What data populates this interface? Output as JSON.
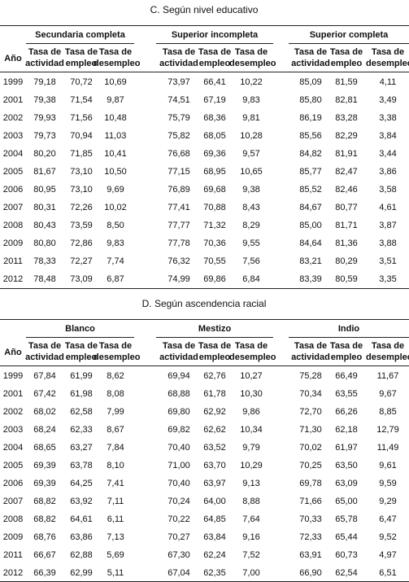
{
  "sections": [
    {
      "title": "C. Según nivel educativo",
      "year_header": "Año",
      "groups": [
        {
          "name": "Secundaria completa",
          "columns": [
            "Tasa de actividad",
            "Tasa de empleo",
            "Tasa de desempleo"
          ]
        },
        {
          "name": "Superior incompleta",
          "columns": [
            "Tasa de actividad",
            "Tasa de empleo",
            "Tasa de desempleo"
          ]
        },
        {
          "name": "Superior completa",
          "columns": [
            "Tasa de actividad",
            "Tasa de empleo",
            "Tasa de desempleo"
          ]
        }
      ],
      "rows": [
        {
          "year": "1999",
          "values": [
            "79,18",
            "70,72",
            "10,69",
            "73,97",
            "66,41",
            "10,22",
            "85,09",
            "81,59",
            "4,11"
          ]
        },
        {
          "year": "2001",
          "values": [
            "79,38",
            "71,54",
            "9,87",
            "74,51",
            "67,19",
            "9,83",
            "85,80",
            "82,81",
            "3,49"
          ]
        },
        {
          "year": "2002",
          "values": [
            "79,93",
            "71,56",
            "10,48",
            "75,79",
            "68,36",
            "9,81",
            "86,19",
            "83,28",
            "3,38"
          ]
        },
        {
          "year": "2003",
          "values": [
            "79,73",
            "70,94",
            "11,03",
            "75,82",
            "68,05",
            "10,28",
            "85,56",
            "82,29",
            "3,84"
          ]
        },
        {
          "year": "2004",
          "values": [
            "80,20",
            "71,85",
            "10,41",
            "76,68",
            "69,36",
            "9,57",
            "84,82",
            "81,91",
            "3,44"
          ]
        },
        {
          "year": "2005",
          "values": [
            "81,67",
            "73,10",
            "10,50",
            "77,15",
            "68,95",
            "10,65",
            "85,77",
            "82,47",
            "3,86"
          ]
        },
        {
          "year": "2006",
          "values": [
            "80,95",
            "73,10",
            "9,69",
            "76,89",
            "69,68",
            "9,38",
            "85,52",
            "82,46",
            "3,58"
          ]
        },
        {
          "year": "2007",
          "values": [
            "80,31",
            "72,26",
            "10,02",
            "77,41",
            "70,88",
            "8,43",
            "84,67",
            "80,77",
            "4,61"
          ]
        },
        {
          "year": "2008",
          "values": [
            "80,43",
            "73,59",
            "8,50",
            "77,77",
            "71,32",
            "8,29",
            "85,00",
            "81,71",
            "3,87"
          ]
        },
        {
          "year": "2009",
          "values": [
            "80,80",
            "72,86",
            "9,83",
            "77,78",
            "70,36",
            "9,55",
            "84,64",
            "81,36",
            "3,88"
          ]
        },
        {
          "year": "2011",
          "values": [
            "78,33",
            "72,27",
            "7,74",
            "76,32",
            "70,55",
            "7,56",
            "83,21",
            "80,29",
            "3,51"
          ]
        },
        {
          "year": "2012",
          "values": [
            "78,48",
            "73,09",
            "6,87",
            "74,99",
            "69,86",
            "6,84",
            "83,39",
            "80,59",
            "3,35"
          ]
        }
      ]
    },
    {
      "title": "D. Según ascendencia racial",
      "year_header": "Año",
      "groups": [
        {
          "name": "Blanco",
          "columns": [
            "Tasa de actividad",
            "Tasa de empleo",
            "Tasa de desempleo"
          ]
        },
        {
          "name": "Mestizo",
          "columns": [
            "Tasa de actividad",
            "Tasa de empleo",
            "Tasa de desempleo"
          ]
        },
        {
          "name": "Indio",
          "columns": [
            "Tasa de actividad",
            "Tasa de empleo",
            "Tasa de desempleo"
          ]
        }
      ],
      "rows": [
        {
          "year": "1999",
          "values": [
            "67,84",
            "61,99",
            "8,62",
            "69,94",
            "62,76",
            "10,27",
            "75,28",
            "66,49",
            "11,67"
          ]
        },
        {
          "year": "2001",
          "values": [
            "67,42",
            "61,98",
            "8,08",
            "68,88",
            "61,78",
            "10,30",
            "70,34",
            "63,55",
            "9,67"
          ]
        },
        {
          "year": "2002",
          "values": [
            "68,02",
            "62,58",
            "7,99",
            "69,80",
            "62,92",
            "9,86",
            "72,70",
            "66,26",
            "8,85"
          ]
        },
        {
          "year": "2003",
          "values": [
            "68,24",
            "62,33",
            "8,67",
            "69,82",
            "62,62",
            "10,34",
            "71,30",
            "62,18",
            "12,79"
          ]
        },
        {
          "year": "2004",
          "values": [
            "68,65",
            "63,27",
            "7,84",
            "70,40",
            "63,52",
            "9,79",
            "70,02",
            "61,97",
            "11,49"
          ]
        },
        {
          "year": "2005",
          "values": [
            "69,39",
            "63,78",
            "8,10",
            "71,00",
            "63,70",
            "10,29",
            "70,25",
            "63,50",
            "9,61"
          ]
        },
        {
          "year": "2006",
          "values": [
            "69,39",
            "64,25",
            "7,41",
            "70,40",
            "63,97",
            "9,13",
            "69,78",
            "63,09",
            "9,59"
          ]
        },
        {
          "year": "2007",
          "values": [
            "68,82",
            "63,92",
            "7,11",
            "70,24",
            "64,00",
            "8,88",
            "71,66",
            "65,00",
            "9,29"
          ]
        },
        {
          "year": "2008",
          "values": [
            "68,82",
            "64,61",
            "6,11",
            "70,22",
            "64,85",
            "7,64",
            "70,33",
            "65,78",
            "6,47"
          ]
        },
        {
          "year": "2009",
          "values": [
            "68,76",
            "63,86",
            "7,13",
            "70,27",
            "63,84",
            "9,16",
            "72,33",
            "65,44",
            "9,52"
          ]
        },
        {
          "year": "2011",
          "values": [
            "66,67",
            "62,88",
            "5,69",
            "67,30",
            "62,24",
            "7,52",
            "63,91",
            "60,73",
            "4,97"
          ]
        },
        {
          "year": "2012",
          "values": [
            "66,39",
            "62,99",
            "5,11",
            "67,04",
            "62,35",
            "7,00",
            "66,90",
            "62,54",
            "6,51"
          ]
        }
      ]
    }
  ]
}
